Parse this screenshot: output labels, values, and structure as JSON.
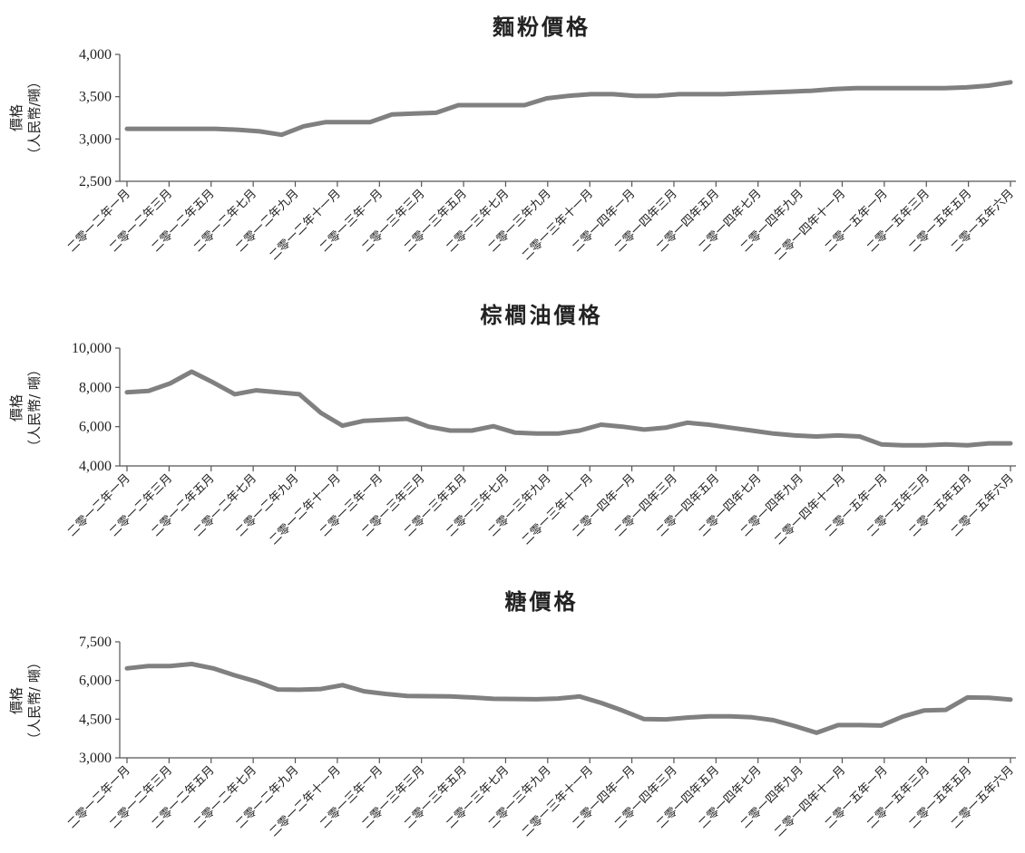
{
  "chart_data": [
    {
      "type": "line",
      "title": "麵粉價格",
      "ylabel": [
        "價格",
        "（人民幣/噸）"
      ],
      "ylim": [
        2500,
        4000
      ],
      "yticks": [
        2500,
        3000,
        3500,
        4000
      ],
      "ytick_labels": [
        "2,500",
        "3,000",
        "3,500",
        "4,000"
      ],
      "tick_labels": [
        "二零一二年一月",
        "二零一二年三月",
        "二零一二年五月",
        "二零一二年七月",
        "二零一二年九月",
        "二零一二年十一月",
        "二零一三年一月",
        "二零一三年三月",
        "二零一三年五月",
        "二零一三年七月",
        "二零一三年九月",
        "二零一三年十一月",
        "二零一四年一月",
        "二零一四年三月",
        "二零一四年五月",
        "二零一四年七月",
        "二零一四年九月",
        "二零一四年十一月",
        "二零一五年一月",
        "二零一五年三月",
        "二零一五年五月",
        "二零一五年六月"
      ],
      "values": [
        3120,
        3120,
        3120,
        3120,
        3120,
        3110,
        3090,
        3050,
        3150,
        3200,
        3200,
        3200,
        3290,
        3300,
        3310,
        3400,
        3400,
        3400,
        3400,
        3480,
        3510,
        3530,
        3530,
        3510,
        3510,
        3530,
        3530,
        3530,
        3540,
        3550,
        3560,
        3570,
        3590,
        3600,
        3600,
        3600,
        3600,
        3600,
        3610,
        3630,
        3670
      ],
      "grid": false
    },
    {
      "type": "line",
      "title": "棕櫚油價格",
      "ylabel": [
        "價格",
        "（人民幣/ 噸）"
      ],
      "ylim": [
        4000,
        10000
      ],
      "yticks": [
        4000,
        6000,
        8000,
        10000
      ],
      "ytick_labels": [
        "4,000",
        "6,000",
        "8,000",
        "10,000"
      ],
      "tick_labels": [
        "二零一二年一月",
        "二零一二年三月",
        "二零一二年五月",
        "二零一二年七月",
        "二零一二年九月",
        "二零一二年十一月",
        "二零一三年一月",
        "二零一三年三月",
        "二零一三年五月",
        "二零一三年七月",
        "二零一三年九月",
        "二零一三年十一月",
        "二零一四年一月",
        "二零一四年三月",
        "二零一四年五月",
        "二零一四年七月",
        "二零一四年九月",
        "二零一四年十一月",
        "二零一五年一月",
        "二零一五年三月",
        "二零一五年五月",
        "二零一五年六月"
      ],
      "values": [
        7750,
        7820,
        8200,
        8800,
        8250,
        7650,
        7850,
        7750,
        7650,
        6700,
        6050,
        6300,
        6350,
        6400,
        6000,
        5800,
        5800,
        6020,
        5700,
        5650,
        5650,
        5800,
        6100,
        6000,
        5850,
        5950,
        6200,
        6100,
        5950,
        5800,
        5650,
        5550,
        5500,
        5550,
        5500,
        5100,
        5050,
        5050,
        5100,
        5050,
        5150,
        5150
      ],
      "grid": false
    },
    {
      "type": "line",
      "title": "糖價格",
      "ylabel": [
        "價格",
        "（人民幣/ 噸）"
      ],
      "ylim": [
        3000,
        7500
      ],
      "yticks": [
        3000,
        4500,
        6000,
        7500
      ],
      "ytick_labels": [
        "3,000",
        "4,500",
        "6,000",
        "7,500"
      ],
      "tick_labels": [
        "二零一二年一月",
        "二零一二年三月",
        "二零一二年五月",
        "二零一二年七月",
        "二零一二年九月",
        "二零一二年十一月",
        "二零一三年一月",
        "二零一三年三月",
        "二零一三年五月",
        "二零一三年七月",
        "二零一三年九月",
        "二零一三年十一月",
        "二零一四年一月",
        "二零一四年三月",
        "二零一四年五月",
        "二零一四年七月",
        "二零一四年九月",
        "二零一四年十一月",
        "二零一五年一月",
        "二零一五年三月",
        "二零一五年五月",
        "二零一五年六月"
      ],
      "values": [
        6470,
        6560,
        6560,
        6640,
        6470,
        6200,
        5960,
        5650,
        5640,
        5670,
        5820,
        5580,
        5480,
        5400,
        5390,
        5380,
        5340,
        5290,
        5280,
        5270,
        5300,
        5380,
        5130,
        4830,
        4500,
        4490,
        4560,
        4610,
        4610,
        4570,
        4460,
        4230,
        3970,
        4270,
        4270,
        4250,
        4600,
        4840,
        4860,
        5340,
        5330,
        5260
      ],
      "grid": false
    }
  ]
}
